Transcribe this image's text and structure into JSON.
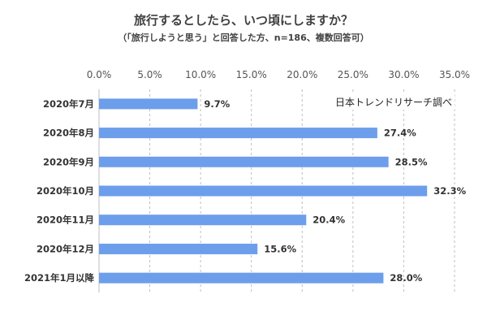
{
  "chart_data": {
    "type": "bar",
    "orientation": "horizontal",
    "title": "旅行するとしたら、いつ頃にしますか？",
    "subtitle": "（「旅行しようと思う」と回答した方、n=186、複数回答可）",
    "source_note": "日本トレンドリサーチ調べ",
    "categories": [
      "2020年7月",
      "2020年8月",
      "2020年9月",
      "2020年10月",
      "2020年11月",
      "2020年12月",
      "2021年1月以降"
    ],
    "values": [
      9.7,
      27.4,
      28.5,
      32.3,
      20.4,
      15.6,
      28.0
    ],
    "value_labels": [
      "9.7%",
      "27.4%",
      "28.5%",
      "32.3%",
      "20.4%",
      "15.6%",
      "28.0%"
    ],
    "xlim": [
      0,
      35
    ],
    "x_ticks": [
      "0.0%",
      "5.0%",
      "10.0%",
      "15.0%",
      "20.0%",
      "25.0%",
      "30.0%",
      "35.0%"
    ],
    "grid": "vertical dashed",
    "bar_color": "#6d9eeb",
    "gridline_color": "#bfbfbf"
  }
}
